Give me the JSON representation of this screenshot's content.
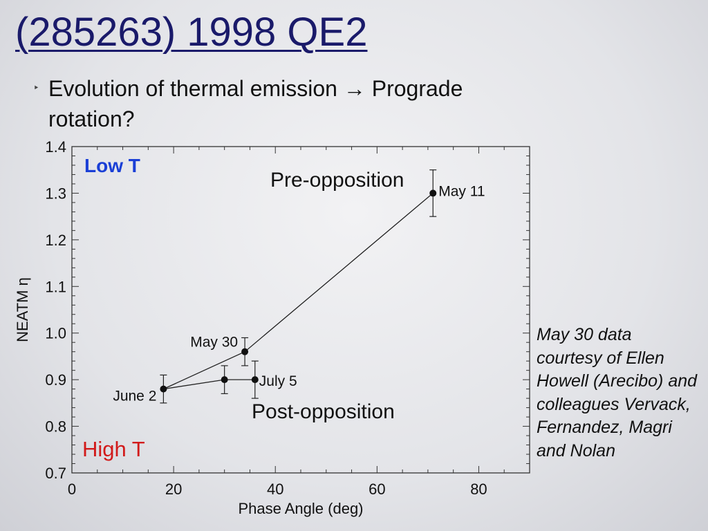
{
  "slide": {
    "title": "(285263) 1998 QE2",
    "bullet": "Evolution of thermal emission → Prograde rotation?",
    "credit": "May 30 data courtesy of Ellen Howell (Arecibo) and colleagues Vervack, Fernandez, Magri and Nolan",
    "colors": {
      "title": "#1a1a6a",
      "low_t": "#1a3fd6",
      "high_t": "#d21a1a"
    }
  },
  "chart_data": {
    "type": "scatter",
    "xlabel": "Phase Angle (deg)",
    "ylabel": "NEATM η",
    "xlim": [
      0,
      90
    ],
    "ylim": [
      0.7,
      1.4
    ],
    "xticks": [
      0,
      20,
      40,
      60,
      80
    ],
    "yticks": [
      0.7,
      0.8,
      0.9,
      1.0,
      1.1,
      1.2,
      1.3,
      1.4
    ],
    "ytick_labels": [
      "0.7",
      "0.8",
      "0.9",
      "1.0",
      "1.1",
      "1.2",
      "1.3",
      "1.4"
    ],
    "grid": false,
    "points": [
      {
        "label": "June 2",
        "x": 18,
        "y": 0.88,
        "err": 0.03
      },
      {
        "label": "",
        "x": 30,
        "y": 0.9,
        "err": 0.03
      },
      {
        "label": "July 5",
        "x": 36,
        "y": 0.9,
        "err": 0.04
      },
      {
        "label": "May 30",
        "x": 34,
        "y": 0.96,
        "err": 0.03
      },
      {
        "label": "May 11",
        "x": 71,
        "y": 1.3,
        "err": 0.05
      }
    ],
    "lines": [
      {
        "name": "pre-opposition",
        "points": [
          [
            18,
            0.88
          ],
          [
            34,
            0.96
          ],
          [
            71,
            1.3
          ]
        ]
      },
      {
        "name": "post-opposition",
        "points": [
          [
            18,
            0.88
          ],
          [
            30,
            0.9
          ],
          [
            36,
            0.9
          ]
        ]
      }
    ],
    "annotations": {
      "low_t": "Low T",
      "high_t": "High T",
      "pre_opposition": "Pre-opposition",
      "post_opposition": "Post-opposition"
    }
  }
}
